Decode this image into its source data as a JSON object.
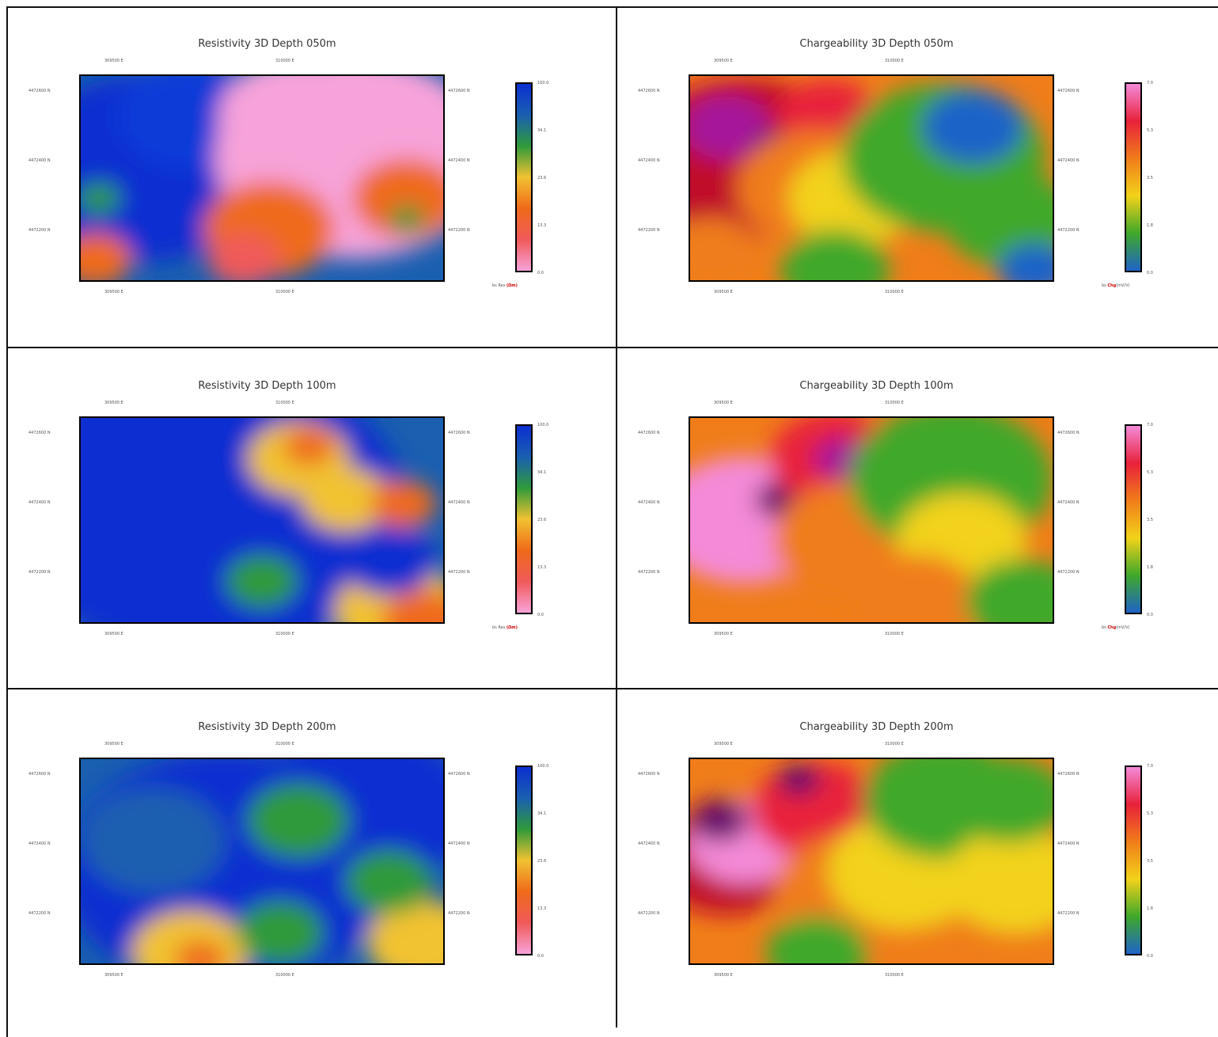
{
  "panels": [
    {
      "id": "res050",
      "title": "Resistivity 3D Depth 050m",
      "type": "resistivity",
      "legend": {
        "unit_prefix": "bs Res ",
        "unit_mark": "(Ωm)",
        "labels": [
          "100.0",
          "34.1",
          "23.6",
          "13.3",
          "0.0"
        ]
      }
    },
    {
      "id": "chg050",
      "title": "Chargeability 3D Depth 050m",
      "type": "chargeability",
      "legend": {
        "unit_prefix": "bs ",
        "unit_mark": "Chg",
        "unit_suffix": "(mV/V)",
        "labels": [
          "7.0",
          "5.3",
          "3.5",
          "1.8",
          "0.0"
        ]
      }
    },
    {
      "id": "res100",
      "title": "Resistivity 3D Depth 100m",
      "type": "resistivity",
      "legend": {
        "unit_prefix": "bs Res ",
        "unit_mark": "(Ωm)",
        "labels": [
          "100.0",
          "34.1",
          "23.6",
          "13.3",
          "0.0"
        ]
      }
    },
    {
      "id": "chg100",
      "title": "Chargeability 3D Depth 100m",
      "type": "chargeability",
      "legend": {
        "unit_prefix": "bs ",
        "unit_mark": "Chg",
        "unit_suffix": "(mV/V)",
        "labels": [
          "7.0",
          "5.3",
          "3.5",
          "1.8",
          "0.0"
        ]
      }
    },
    {
      "id": "res200",
      "title": "Resistivity 3D Depth 200m",
      "type": "resistivity",
      "legend": {
        "unit_prefix": "",
        "unit_mark": "",
        "labels": [
          "100.0",
          "34.1",
          "23.6",
          "13.3",
          "0.0"
        ]
      }
    },
    {
      "id": "chg200",
      "title": "Chargeability 3D Depth 200m",
      "type": "chargeability",
      "legend": {
        "unit_prefix": "",
        "unit_mark": "",
        "unit_suffix": "",
        "labels": [
          "7.0",
          "5.3",
          "3.5",
          "1.8",
          "0.0"
        ]
      }
    }
  ],
  "axes": {
    "x_ticks": [
      "309500 E",
      "310000 E"
    ],
    "y_ticks": [
      "4472600 N",
      "4472400 N",
      "4472200 N"
    ]
  },
  "colors": {
    "resistivity_scale": [
      "#0b2fd0",
      "#1a5fb0",
      "#2f9a3a",
      "#f1c232",
      "#ef6a1a",
      "#f05a5a",
      "#f7a3d9"
    ],
    "chargeability_scale": [
      "#f48ad8",
      "#e8213a",
      "#f07d1a",
      "#f2d21a",
      "#3fa82a",
      "#1f63c8"
    ]
  }
}
